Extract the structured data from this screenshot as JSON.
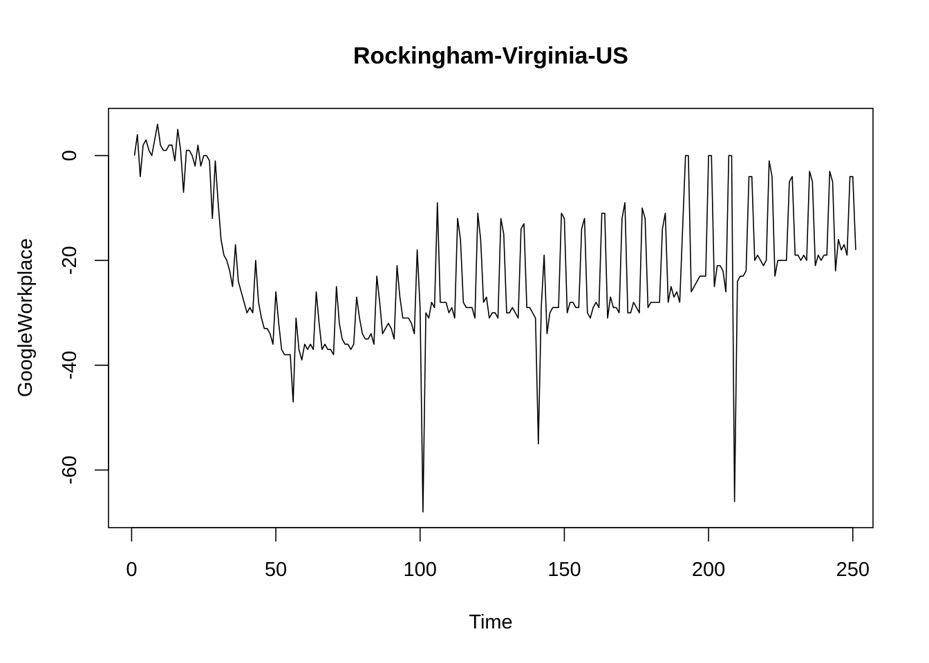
{
  "chart_data": {
    "type": "line",
    "title": "Rockingham-Virginia-US",
    "xlabel": "Time",
    "ylabel": "GoogleWorkplace",
    "xlim": [
      -8,
      257
    ],
    "ylim": [
      -71,
      9
    ],
    "x_ticks": [
      0,
      50,
      100,
      150,
      200,
      250
    ],
    "y_ticks": [
      0,
      -20,
      -40,
      -60
    ],
    "grid": false,
    "legend": "none",
    "series": [
      {
        "color": "#000000",
        "x_start": 1,
        "values": [
          0,
          4,
          -4,
          2,
          3,
          1,
          0,
          3,
          6,
          2,
          1,
          1,
          2,
          2,
          -1,
          5,
          1,
          -7,
          1,
          1,
          0,
          -2,
          2,
          -2,
          0,
          0,
          -1,
          -12,
          -1,
          -9,
          -16,
          -19,
          -20,
          -22,
          -25,
          -17,
          -24,
          -26,
          -28,
          -30,
          -29,
          -30,
          -20,
          -28,
          -31,
          -33,
          -33,
          -34,
          -36,
          -26,
          -32,
          -37,
          -38,
          -38,
          -38,
          -47,
          -31,
          -37,
          -39,
          -36,
          -37,
          -36,
          -37,
          -26,
          -32,
          -37,
          -36,
          -37,
          -37,
          -38,
          -25,
          -32,
          -35,
          -36,
          -36,
          -37,
          -36,
          -27,
          -31,
          -34,
          -35,
          -35,
          -34,
          -36,
          -23,
          -28,
          -34,
          -33,
          -32,
          -33,
          -35,
          -21,
          -27,
          -31,
          -31,
          -31,
          -32,
          -34,
          -18,
          -29,
          -68,
          -30,
          -31,
          -28,
          -29,
          -9,
          -28,
          -28,
          -28,
          -30,
          -29,
          -31,
          -12,
          -16,
          -28,
          -29,
          -29,
          -29,
          -31,
          -11,
          -16,
          -28,
          -27,
          -31,
          -30,
          -30,
          -31,
          -12,
          -15,
          -30,
          -30,
          -29,
          -30,
          -31,
          -14,
          -13,
          -29,
          -29,
          -30,
          -31,
          -55,
          -29,
          -19,
          -34,
          -30,
          -29,
          -29,
          -29,
          -11,
          -12,
          -30,
          -28,
          -28,
          -29,
          -29,
          -14,
          -12,
          -30,
          -31,
          -29,
          -28,
          -29,
          -11,
          -11,
          -31,
          -27,
          -29,
          -29,
          -30,
          -12,
          -9,
          -30,
          -30,
          -28,
          -29,
          -30,
          -10,
          -12,
          -29,
          -28,
          -28,
          -28,
          -28,
          -14,
          -11,
          -28,
          -25,
          -27,
          -26,
          -28,
          -14,
          0,
          0,
          -26,
          -25,
          -24,
          -23,
          -23,
          -23,
          0,
          0,
          -25,
          -21,
          -21,
          -22,
          -26,
          0,
          0,
          -66,
          -24,
          -23,
          -23,
          -22,
          -4,
          -4,
          -20,
          -19,
          -20,
          -21,
          -20,
          -1,
          -4,
          -23,
          -20,
          -20,
          -20,
          -20,
          -5,
          -4,
          -19,
          -19,
          -20,
          -19,
          -20,
          -3,
          -5,
          -21,
          -19,
          -20,
          -19,
          -19,
          -3,
          -5,
          -22,
          -16,
          -18,
          -17,
          -19,
          -4,
          -4,
          -18
        ]
      }
    ]
  }
}
